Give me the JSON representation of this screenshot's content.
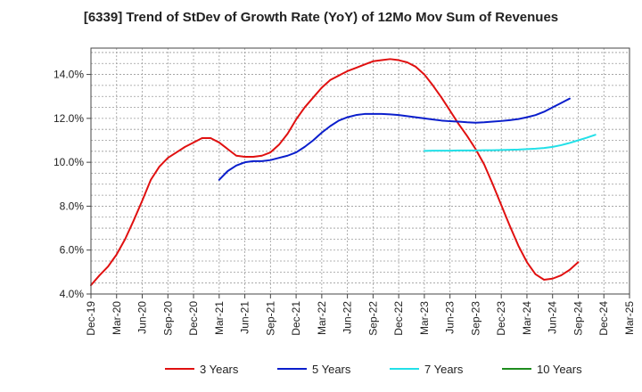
{
  "chart_data": {
    "type": "line",
    "title": "[6339]  Trend of StDev of Growth Rate (YoY) of 12Mo Mov Sum of Revenues",
    "xlabel": "",
    "ylabel": "",
    "ylim": [
      4.0,
      15.2
    ],
    "y_ticks": [
      4.0,
      6.0,
      8.0,
      10.0,
      12.0,
      14.0
    ],
    "y_tick_labels": [
      "4.0%",
      "6.0%",
      "8.0%",
      "10.0%",
      "12.0%",
      "14.0%"
    ],
    "x_tick_labels": [
      "Dec-19",
      "Mar-20",
      "Jun-20",
      "Sep-20",
      "Dec-20",
      "Mar-21",
      "Jun-21",
      "Sep-21",
      "Dec-21",
      "Mar-22",
      "Jun-22",
      "Sep-22",
      "Dec-22",
      "Mar-23",
      "Jun-23",
      "Sep-23",
      "Dec-23",
      "Mar-24",
      "Jun-24",
      "Sep-24",
      "Dec-24",
      "Mar-25"
    ],
    "grid": true,
    "legend_position": "bottom",
    "series": [
      {
        "name": "3 Years",
        "color": "#e01010",
        "start_index": 0,
        "values": [
          4.4,
          4.85,
          5.25,
          5.8,
          6.5,
          7.35,
          8.25,
          9.2,
          9.8,
          10.2,
          10.45,
          10.7,
          10.9,
          11.1,
          11.1,
          10.9,
          10.6,
          10.3,
          10.25,
          10.25,
          10.3,
          10.45,
          10.8,
          11.3,
          11.95,
          12.5,
          12.95,
          13.4,
          13.75,
          13.95,
          14.15,
          14.3,
          14.45,
          14.6,
          14.65,
          14.7,
          14.65,
          14.55,
          14.35,
          14.0,
          13.5,
          12.95,
          12.35,
          11.75,
          11.2,
          10.6,
          9.9,
          9.0,
          8.05,
          7.1,
          6.2,
          5.45,
          4.9,
          4.65,
          4.7,
          4.85,
          5.1,
          5.45
        ]
      },
      {
        "name": "5 Years",
        "color": "#0a1ecc",
        "start_index": 15,
        "values": [
          9.2,
          9.6,
          9.85,
          10.0,
          10.05,
          10.05,
          10.1,
          10.2,
          10.3,
          10.45,
          10.7,
          11.0,
          11.35,
          11.65,
          11.9,
          12.05,
          12.15,
          12.2,
          12.2,
          12.2,
          12.18,
          12.15,
          12.1,
          12.05,
          12.0,
          11.95,
          11.9,
          11.87,
          11.85,
          11.82,
          11.8,
          11.82,
          11.85,
          11.88,
          11.92,
          11.97,
          12.05,
          12.15,
          12.3,
          12.5,
          12.7,
          12.9
        ]
      },
      {
        "name": "7 Years",
        "color": "#22e0e8",
        "start_index": 39,
        "values": [
          10.52,
          10.53,
          10.53,
          10.53,
          10.54,
          10.54,
          10.54,
          10.55,
          10.55,
          10.56,
          10.57,
          10.58,
          10.6,
          10.62,
          10.65,
          10.7,
          10.78,
          10.88,
          11.0,
          11.12,
          11.25
        ]
      },
      {
        "name": "10 Years",
        "color": "#1e8c1e",
        "start_index": 0,
        "values": []
      }
    ]
  }
}
